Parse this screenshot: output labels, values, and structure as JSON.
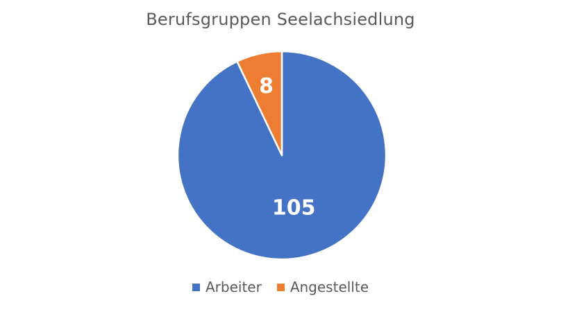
{
  "chart_data": {
    "type": "pie",
    "title": "Berufsgruppen Seelachsiedlung",
    "categories": [
      "Arbeiter",
      "Angestellte"
    ],
    "values": [
      105,
      8
    ],
    "colors": [
      "#4472C4",
      "#ED7D31"
    ],
    "data_labels": [
      "105",
      "8"
    ],
    "legend": "bottom",
    "start_angle_deg": 0,
    "direction": "clockwise-from-top, Angestellte counter-clockwise"
  }
}
